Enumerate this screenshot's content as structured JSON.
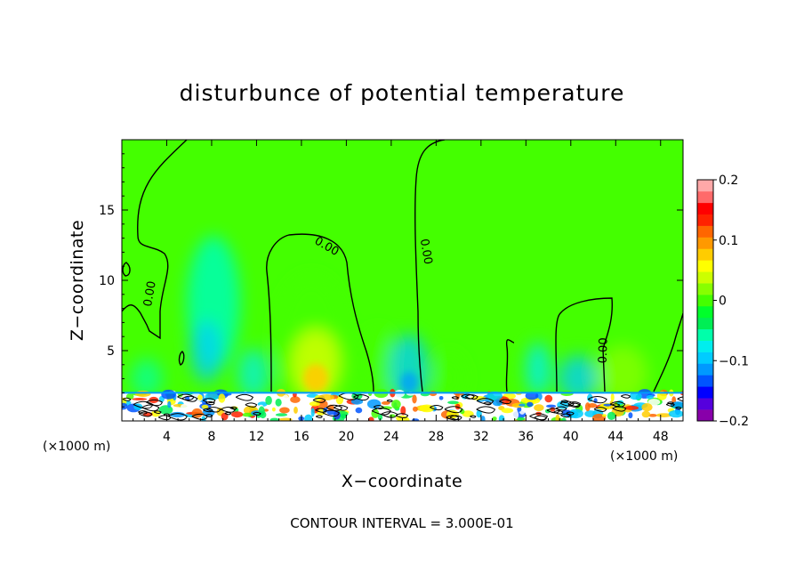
{
  "chart_data": {
    "type": "heatmap",
    "title": "disturbunce of potential temperature",
    "xlabel": "X−coordinate",
    "ylabel": "Z−coordinate",
    "x_unit_left": "(×1000 m)",
    "x_unit_right": "(×1000 m)",
    "xlim": [
      0,
      50
    ],
    "ylim": [
      0,
      20
    ],
    "x_ticks": [
      4,
      8,
      12,
      16,
      20,
      24,
      28,
      32,
      36,
      40,
      44,
      48
    ],
    "x_tick_labels": [
      "4",
      "8",
      "12",
      "16",
      "20",
      "24",
      "28",
      "32",
      "36",
      "40",
      "44",
      "48"
    ],
    "y_ticks": [
      5,
      10,
      15
    ],
    "y_tick_labels": [
      "5",
      "10",
      "15"
    ],
    "colorbar": {
      "range": [
        -0.2,
        0.2
      ],
      "ticks": [
        0.2,
        0.1,
        0,
        -0.1,
        -0.2
      ],
      "tick_labels": [
        "0.2",
        "0.1",
        "0",
        "−0.1",
        "−0.2"
      ],
      "colors": [
        "#8800aa",
        "#5500dd",
        "#0000ff",
        "#0055ff",
        "#0099ff",
        "#00ccff",
        "#00eeee",
        "#00ffaa",
        "#00ee55",
        "#00ff2a",
        "#44ff00",
        "#88ff00",
        "#ccff00",
        "#ffff00",
        "#ffcc00",
        "#ff9900",
        "#ff6600",
        "#ff2200",
        "#ff0000",
        "#ff6a6a",
        "#ffa8a8"
      ]
    },
    "background_level": 0,
    "contour_labels": [
      {
        "text": "0.00",
        "x": 2.8,
        "z": 9.0,
        "angle": -80
      },
      {
        "text": "0.00",
        "x": 18.1,
        "z": 12.2,
        "angle": 30
      },
      {
        "text": "0.00",
        "x": 26.8,
        "z": 12.0,
        "angle": 80
      },
      {
        "text": "0.00",
        "x": 43.2,
        "z": 5.0,
        "angle": -88
      }
    ],
    "contour_interval_text": "CONTOUR INTERVAL =  3.000E-01"
  }
}
